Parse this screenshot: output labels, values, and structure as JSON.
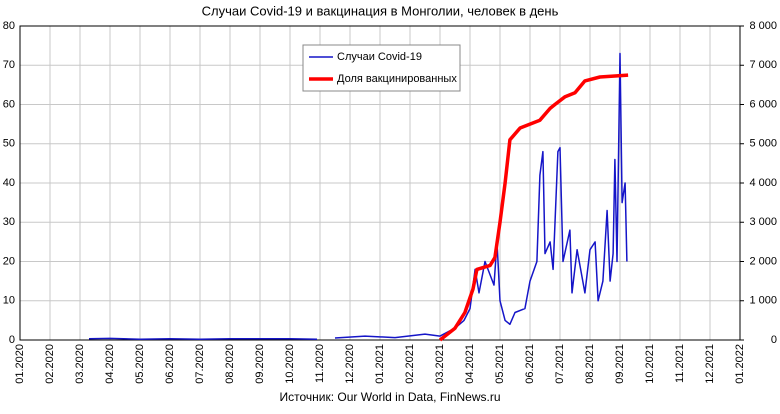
{
  "chart_data": {
    "type": "line",
    "title": "Случаи Covid-19 и вакцинация в Монголии, человек в день",
    "source": "Источник: Our World in Data, FinNews.ru",
    "xlim": [
      0,
      24
    ],
    "xticks": [
      {
        "value": 0,
        "label": "01.2020"
      },
      {
        "value": 1,
        "label": "02.2020"
      },
      {
        "value": 2,
        "label": "03.2020"
      },
      {
        "value": 3,
        "label": "04.2020"
      },
      {
        "value": 4,
        "label": "05.2020"
      },
      {
        "value": 5,
        "label": "06.2020"
      },
      {
        "value": 6,
        "label": "07.2020"
      },
      {
        "value": 7,
        "label": "08.2020"
      },
      {
        "value": 8,
        "label": "09.2020"
      },
      {
        "value": 9,
        "label": "10.2020"
      },
      {
        "value": 10,
        "label": "11.2020"
      },
      {
        "value": 11,
        "label": "12.2020"
      },
      {
        "value": 12,
        "label": "01.2021"
      },
      {
        "value": 13,
        "label": "02.2021"
      },
      {
        "value": 14,
        "label": "03.2021"
      },
      {
        "value": 15,
        "label": "04.2021"
      },
      {
        "value": 16,
        "label": "05.2021"
      },
      {
        "value": 17,
        "label": "06.2021"
      },
      {
        "value": 18,
        "label": "07.2021"
      },
      {
        "value": 19,
        "label": "08.2021"
      },
      {
        "value": 20,
        "label": "09.2021"
      },
      {
        "value": 21,
        "label": "10.2021"
      },
      {
        "value": 22,
        "label": "11.2021"
      },
      {
        "value": 23,
        "label": "12.2021"
      },
      {
        "value": 24,
        "label": "01.2022"
      }
    ],
    "ylim": [
      0,
      80
    ],
    "yticks": [
      0,
      10,
      20,
      30,
      40,
      50,
      60,
      70,
      80
    ],
    "y2lim": [
      0,
      8000
    ],
    "y2ticks": [
      0,
      {
        "value": 1000,
        "label": "1 000"
      },
      {
        "value": 2000,
        "label": "2 000"
      },
      {
        "value": 3000,
        "label": "3 000"
      },
      {
        "value": 4000,
        "label": "4 000"
      },
      {
        "value": 5000,
        "label": "5 000"
      },
      {
        "value": 6000,
        "label": "6 000"
      },
      {
        "value": 7000,
        "label": "7 000"
      },
      {
        "value": 8000,
        "label": "8 000"
      }
    ],
    "grid": true,
    "legend": "top",
    "series": [
      {
        "name": "Случаи Covid-19",
        "color": "#1515c8",
        "axis": "y2",
        "x": [
          2.3,
          3,
          4,
          5,
          6,
          7,
          8,
          9,
          9.9,
          10.2,
          10.5,
          11.5,
          12.5,
          13.5,
          14,
          14.5,
          14.8,
          15,
          15.17,
          15.3,
          15.5,
          15.8,
          15.9,
          16,
          16.17,
          16.33,
          16.5,
          16.83,
          17,
          17.23,
          17.33,
          17.43,
          17.5,
          17.67,
          17.77,
          17.93,
          18,
          18.1,
          18.33,
          18.4,
          18.57,
          18.83,
          19,
          19.17,
          19.27,
          19.43,
          19.57,
          19.67,
          19.77,
          19.83,
          19.9,
          20,
          20.07,
          20.17,
          20.23
        ],
        "values": [
          30,
          40,
          20,
          30,
          20,
          30,
          30,
          30,
          20,
          null,
          50,
          100,
          60,
          150,
          100,
          300,
          500,
          800,
          1800,
          1200,
          2000,
          1400,
          2500,
          1000,
          500,
          400,
          700,
          800,
          1500,
          2000,
          4200,
          4800,
          2200,
          2500,
          1800,
          4800,
          4900,
          2000,
          2800,
          1200,
          2300,
          1200,
          2300,
          2500,
          1000,
          1500,
          3300,
          1500,
          2200,
          4600,
          2000,
          7300,
          3500,
          4000,
          2000
        ]
      },
      {
        "name": "Доля вакцинированных",
        "color": "#ff0000",
        "x": [
          14,
          14.5,
          14.83,
          15.1,
          15.23,
          15.67,
          15.83,
          16,
          16.17,
          16.33,
          16.67,
          17.33,
          17.67,
          17.83,
          18.17,
          18.5,
          18.83,
          19.33,
          20.27
        ],
        "values": [
          0,
          3,
          7,
          13,
          18,
          19,
          21,
          30,
          40,
          51,
          54,
          56,
          59,
          60,
          62,
          63,
          66,
          67,
          67.5
        ]
      }
    ]
  }
}
